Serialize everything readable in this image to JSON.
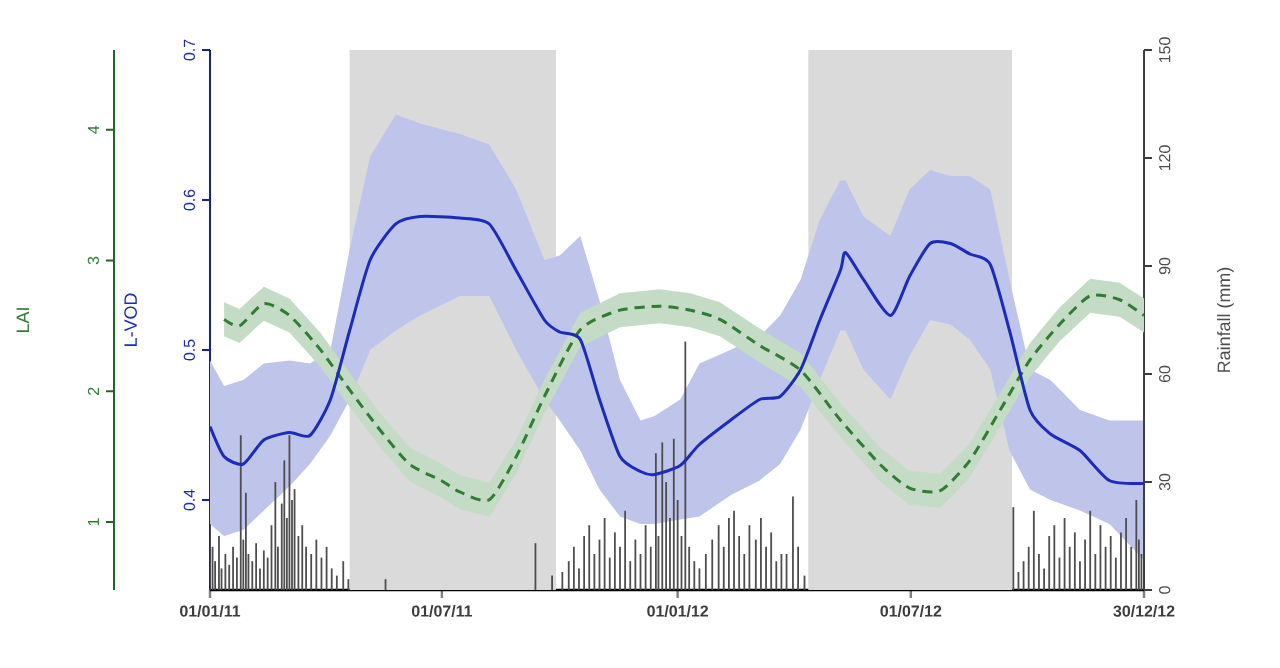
{
  "chart_data": {
    "type": "line",
    "ylabel": "L-VOD",
    "y2label": "Rainfall (mm)",
    "y3label": "LAI",
    "xlim": [
      "2011-01-01",
      "2012-12-30"
    ],
    "xticks": [
      {
        "value": "2011-01-01",
        "label": "01/01/11"
      },
      {
        "value": "2011-07-01",
        "label": "01/07/11"
      },
      {
        "value": "2012-01-01",
        "label": "01/01/12"
      },
      {
        "value": "2012-07-01",
        "label": "01/07/12"
      },
      {
        "value": "2012-12-30",
        "label": "30/12/12"
      }
    ],
    "ylim": [
      0.34,
      0.7
    ],
    "yticks": [
      0.4,
      0.5,
      0.6,
      0.7
    ],
    "y2lim": [
      0,
      150
    ],
    "y2ticks": [
      0,
      30,
      60,
      90,
      120,
      150
    ],
    "y3lim": [
      0.48,
      4.61
    ],
    "y3ticks": [
      1,
      2,
      3,
      4
    ],
    "bands": [
      {
        "axis": "x",
        "from": "2011-04-20",
        "to": "2011-09-28",
        "color": "#dadada"
      },
      {
        "axis": "x",
        "from": "2012-04-12",
        "to": "2012-09-18",
        "color": "#dadada"
      }
    ],
    "series": [
      {
        "type": "bar",
        "axis": "y2",
        "color": "#4d4d4d",
        "x": [
          "2011-01-01",
          "2011-01-03",
          "2011-01-05",
          "2011-01-08",
          "2011-01-10",
          "2011-01-13",
          "2011-01-16",
          "2011-01-19",
          "2011-01-22",
          "2011-01-25",
          "2011-01-27",
          "2011-01-29",
          "2011-01-31",
          "2011-02-03",
          "2011-02-06",
          "2011-02-09",
          "2011-02-12",
          "2011-02-15",
          "2011-02-18",
          "2011-02-21",
          "2011-02-23",
          "2011-02-26",
          "2011-02-28",
          "2011-03-02",
          "2011-03-04",
          "2011-03-06",
          "2011-03-08",
          "2011-03-11",
          "2011-03-14",
          "2011-03-17",
          "2011-03-21",
          "2011-03-25",
          "2011-03-29",
          "2011-04-02",
          "2011-04-06",
          "2011-04-10",
          "2011-04-15",
          "2011-04-19",
          "2011-05-18",
          "2011-09-12",
          "2011-09-25",
          "2011-10-03",
          "2011-10-08",
          "2011-10-12",
          "2011-10-16",
          "2011-10-20",
          "2011-10-24",
          "2011-10-28",
          "2011-11-01",
          "2011-11-05",
          "2011-11-09",
          "2011-11-13",
          "2011-11-17",
          "2011-11-21",
          "2011-11-25",
          "2011-11-29",
          "2011-12-03",
          "2011-12-07",
          "2011-12-11",
          "2011-12-15",
          "2011-12-17",
          "2011-12-20",
          "2011-12-23",
          "2011-12-26",
          "2011-12-29",
          "2012-01-01",
          "2012-01-04",
          "2012-01-07",
          "2012-01-10",
          "2012-01-14",
          "2012-01-18",
          "2012-01-23",
          "2012-01-28",
          "2012-02-02",
          "2012-02-06",
          "2012-02-10",
          "2012-02-14",
          "2012-02-18",
          "2012-02-22",
          "2012-02-26",
          "2012-03-02",
          "2012-03-06",
          "2012-03-10",
          "2012-03-14",
          "2012-03-18",
          "2012-03-22",
          "2012-03-26",
          "2012-03-31",
          "2012-04-04",
          "2012-04-09",
          "2012-09-19",
          "2012-09-23",
          "2012-09-27",
          "2012-10-01",
          "2012-10-05",
          "2012-10-09",
          "2012-10-13",
          "2012-10-17",
          "2012-10-21",
          "2012-10-25",
          "2012-10-29",
          "2012-11-02",
          "2012-11-06",
          "2012-11-10",
          "2012-11-14",
          "2012-11-18",
          "2012-11-22",
          "2012-11-26",
          "2012-11-30",
          "2012-12-04",
          "2012-12-08",
          "2012-12-12",
          "2012-12-16",
          "2012-12-20",
          "2012-12-24",
          "2012-12-26",
          "2012-12-28"
        ],
        "values": [
          18,
          12,
          8,
          15,
          6,
          10,
          7,
          12,
          9,
          43,
          14,
          27,
          10,
          8,
          13,
          6,
          11,
          9,
          18,
          30,
          12,
          24,
          36,
          20,
          43,
          25,
          28,
          15,
          18,
          12,
          10,
          14,
          9,
          12,
          6,
          4,
          8,
          3,
          3,
          13,
          4,
          5,
          8,
          12,
          6,
          15,
          18,
          10,
          14,
          20,
          9,
          16,
          12,
          22,
          8,
          14,
          10,
          18,
          12,
          38,
          15,
          41,
          30,
          20,
          42,
          25,
          15,
          69,
          12,
          8,
          6,
          10,
          14,
          18,
          12,
          20,
          22,
          15,
          10,
          18,
          14,
          20,
          12,
          16,
          8,
          10,
          10,
          26,
          12,
          4,
          23,
          5,
          8,
          12,
          22,
          10,
          6,
          15,
          18,
          9,
          20,
          12,
          16,
          8,
          14,
          22,
          10,
          18,
          12,
          15,
          9,
          16,
          20,
          12,
          25,
          14,
          10
        ]
      },
      {
        "type": "line",
        "axis": "y3",
        "color": "#2e7d32",
        "line_style": "dashed",
        "x": [
          "2011-01-12",
          "2011-01-24",
          "2011-02-12",
          "2011-03-04",
          "2011-03-28",
          "2011-04-20",
          "2011-05-14",
          "2011-06-06",
          "2011-06-30",
          "2011-07-15",
          "2011-08-07",
          "2011-08-28",
          "2011-09-19",
          "2011-10-17",
          "2011-11-17",
          "2011-12-18",
          "2012-01-11",
          "2012-02-03",
          "2012-03-05",
          "2012-04-06",
          "2012-05-07",
          "2012-06-07",
          "2012-06-30",
          "2012-07-24",
          "2012-08-16",
          "2012-09-09",
          "2012-10-02",
          "2012-10-25",
          "2012-11-18",
          "2012-12-11",
          "2012-12-30"
        ],
        "values": [
          2.55,
          2.5,
          2.67,
          2.58,
          2.32,
          2.01,
          1.7,
          1.44,
          1.32,
          1.23,
          1.17,
          1.5,
          1.96,
          2.47,
          2.62,
          2.65,
          2.62,
          2.55,
          2.35,
          2.16,
          1.78,
          1.44,
          1.26,
          1.24,
          1.47,
          1.86,
          2.24,
          2.51,
          2.73,
          2.7,
          2.58
        ],
        "lower": [
          2.42,
          2.37,
          2.54,
          2.45,
          2.19,
          1.88,
          1.57,
          1.31,
          1.19,
          1.1,
          1.04,
          1.37,
          1.83,
          2.34,
          2.49,
          2.52,
          2.49,
          2.42,
          2.22,
          2.03,
          1.65,
          1.31,
          1.13,
          1.11,
          1.34,
          1.73,
          2.11,
          2.38,
          2.6,
          2.57,
          2.45
        ],
        "upper": [
          2.68,
          2.63,
          2.8,
          2.71,
          2.45,
          2.14,
          1.83,
          1.57,
          1.45,
          1.36,
          1.3,
          1.63,
          2.09,
          2.6,
          2.75,
          2.78,
          2.75,
          2.68,
          2.48,
          2.29,
          1.91,
          1.57,
          1.39,
          1.37,
          1.6,
          1.99,
          2.37,
          2.64,
          2.86,
          2.83,
          2.71
        ]
      },
      {
        "color": "#1c2bb8",
        "x": [
          "2011-01-01",
          "2011-01-12",
          "2011-01-27",
          "2011-02-12",
          "2011-03-04",
          "2011-03-20",
          "2011-04-05",
          "2011-04-20",
          "2011-05-06",
          "2011-05-26",
          "2011-06-14",
          "2011-07-15",
          "2011-08-07",
          "2011-08-28",
          "2011-09-19",
          "2011-10-01",
          "2011-10-17",
          "2011-11-01",
          "2011-11-17",
          "2011-12-03",
          "2011-12-14",
          "2012-01-03",
          "2012-01-18",
          "2012-02-11",
          "2012-03-05",
          "2012-03-21",
          "2012-04-06",
          "2012-04-21",
          "2012-05-07",
          "2012-05-11",
          "2012-05-25",
          "2012-06-15",
          "2012-06-30",
          "2012-07-16",
          "2012-08-01",
          "2012-08-16",
          "2012-09-01",
          "2012-09-16",
          "2012-10-02",
          "2012-10-18",
          "2012-11-10",
          "2012-12-03",
          "2012-12-30"
        ],
        "values": [
          0.449,
          0.429,
          0.424,
          0.44,
          0.445,
          0.443,
          0.467,
          0.513,
          0.56,
          0.584,
          0.589,
          0.588,
          0.584,
          0.553,
          0.52,
          0.512,
          0.507,
          0.467,
          0.429,
          0.419,
          0.417,
          0.423,
          0.437,
          0.453,
          0.467,
          0.469,
          0.487,
          0.52,
          0.553,
          0.565,
          0.547,
          0.523,
          0.549,
          0.571,
          0.571,
          0.564,
          0.557,
          0.513,
          0.46,
          0.444,
          0.433,
          0.413,
          0.411
        ],
        "lower": [
          0.384,
          0.376,
          0.38,
          0.393,
          0.409,
          0.424,
          0.443,
          0.467,
          0.5,
          0.513,
          0.523,
          0.536,
          0.536,
          0.5,
          0.467,
          0.453,
          0.433,
          0.407,
          0.389,
          0.384,
          0.384,
          0.387,
          0.389,
          0.403,
          0.413,
          0.424,
          0.447,
          0.48,
          0.513,
          0.513,
          0.487,
          0.467,
          0.496,
          0.52,
          0.517,
          0.507,
          0.487,
          0.433,
          0.407,
          0.4,
          0.393,
          0.384,
          0.36
        ],
        "upper": [
          0.493,
          0.476,
          0.48,
          0.491,
          0.493,
          0.491,
          0.5,
          0.567,
          0.629,
          0.657,
          0.651,
          0.644,
          0.637,
          0.607,
          0.56,
          0.563,
          0.576,
          0.533,
          0.48,
          0.453,
          0.456,
          0.467,
          0.491,
          0.5,
          0.509,
          0.523,
          0.547,
          0.587,
          0.613,
          0.613,
          0.589,
          0.576,
          0.607,
          0.62,
          0.616,
          0.616,
          0.607,
          0.547,
          0.487,
          0.48,
          0.46,
          0.453,
          0.453
        ]
      }
    ]
  }
}
